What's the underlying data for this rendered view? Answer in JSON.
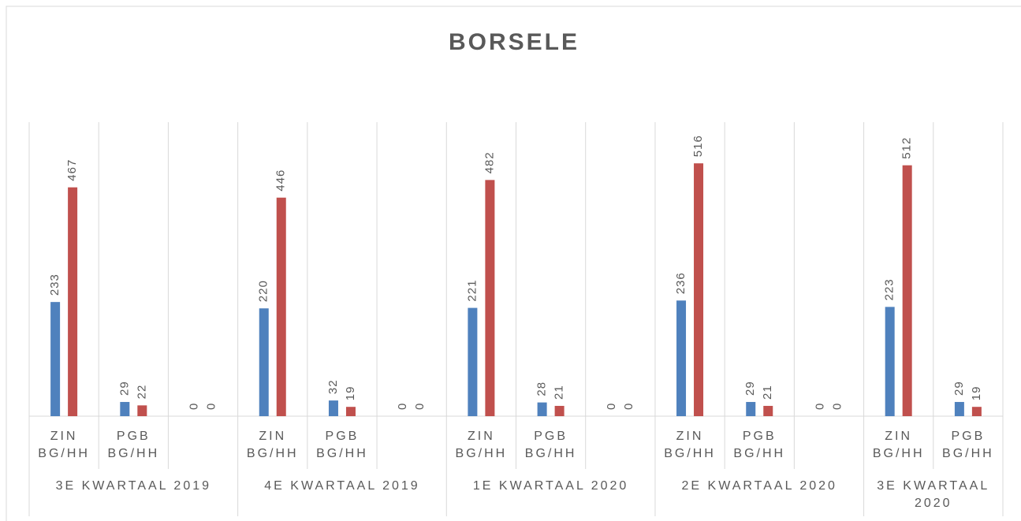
{
  "chart_data": {
    "type": "bar",
    "title": "BORSELE",
    "groups": [
      {
        "label": "3E KWARTAAL 2019",
        "categories": [
          "ZIN BG/HH",
          "PGB BG/HH",
          null
        ]
      },
      {
        "label": "4E KWARTAAL 2019",
        "categories": [
          "ZIN BG/HH",
          "PGB BG/HH",
          null
        ]
      },
      {
        "label": "1E KWARTAAL 2020",
        "categories": [
          "ZIN BG/HH",
          "PGB BG/HH",
          null
        ]
      },
      {
        "label": "2E KWARTAAL 2020",
        "categories": [
          "ZIN BG/HH",
          "PGB BG/HH",
          null
        ]
      },
      {
        "label": "3E KWARTAAL 2020",
        "categories": [
          "ZIN BG/HH",
          "PGB BG/HH"
        ]
      }
    ],
    "series": [
      {
        "color": "#4f81bd",
        "values": [
          233,
          29,
          0,
          220,
          32,
          0,
          221,
          28,
          0,
          236,
          29,
          0,
          223,
          29
        ]
      },
      {
        "color": "#c0504d",
        "values": [
          467,
          22,
          0,
          446,
          19,
          0,
          482,
          21,
          0,
          516,
          21,
          0,
          512,
          19
        ]
      }
    ],
    "ylim": [
      0,
      600
    ],
    "grid": true
  }
}
